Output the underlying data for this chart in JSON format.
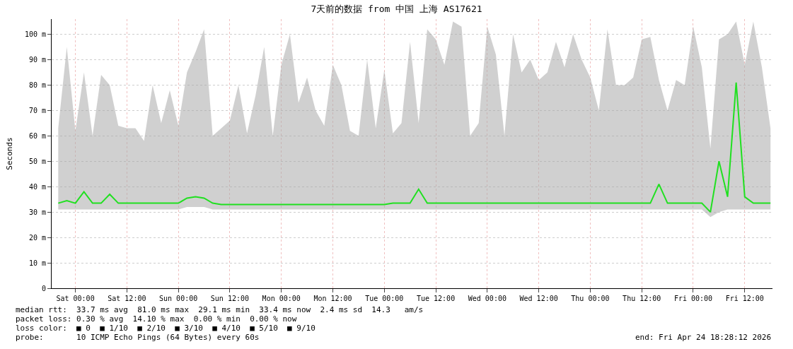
{
  "chart_data": {
    "type": "line",
    "title": "7天前的数据 from 中国 上海 AS17621",
    "ylabel": "Seconds",
    "x": [
      "--04-17T20:00",
      "--04-17T22:00",
      "--04-18T00:00",
      "--04-18T02:00",
      "--04-18T04:00",
      "--04-18T06:00",
      "--04-18T08:00",
      "--04-18T10:00",
      "--04-18T12:00",
      "--04-18T14:00",
      "--04-18T16:00",
      "--04-18T18:00",
      "--04-18T20:00",
      "--04-18T22:00",
      "--04-19T00:00",
      "--04-19T02:00",
      "--04-19T04:00",
      "--04-19T06:00",
      "--04-19T08:00",
      "--04-19T10:00",
      "--04-19T12:00",
      "--04-19T14:00",
      "--04-19T16:00",
      "--04-19T18:00",
      "--04-19T20:00",
      "--04-19T22:00",
      "--04-20T00:00",
      "--04-20T02:00",
      "--04-20T04:00",
      "--04-20T06:00",
      "--04-20T08:00",
      "--04-20T10:00",
      "--04-20T12:00",
      "--04-20T14:00",
      "--04-20T16:00",
      "--04-20T18:00",
      "--04-20T20:00",
      "--04-20T22:00",
      "--04-21T00:00",
      "--04-21T02:00",
      "--04-21T04:00",
      "--04-21T06:00",
      "--04-21T08:00",
      "--04-21T10:00",
      "--04-21T12:00",
      "--04-21T14:00",
      "--04-21T16:00",
      "--04-21T18:00",
      "--04-21T20:00",
      "--04-21T22:00",
      "--04-22T00:00",
      "--04-22T02:00",
      "--04-22T04:00",
      "--04-22T06:00",
      "--04-22T08:00",
      "--04-22T10:00",
      "--04-22T12:00",
      "--04-22T14:00",
      "--04-22T16:00",
      "--04-22T18:00",
      "--04-22T20:00",
      "--04-22T22:00",
      "--04-23T00:00",
      "--04-23T02:00",
      "--04-23T04:00",
      "--04-23T06:00",
      "--04-23T08:00",
      "--04-23T10:00",
      "--04-23T12:00",
      "--04-23T14:00",
      "--04-23T16:00",
      "--04-23T18:00",
      "--04-23T20:00",
      "--04-23T22:00",
      "--04-24T00:00",
      "--04-24T02:00",
      "--04-24T04:00",
      "--04-24T06:00",
      "--04-24T08:00",
      "--04-24T10:00",
      "--04-24T12:00",
      "--04-24T14:00",
      "--04-24T16:00",
      "--04-24T18:00"
    ],
    "series": [
      {
        "color": "#20e020",
        "values": [
          33.5,
          34.5,
          33.5,
          38,
          33.5,
          33.5,
          37,
          33.5,
          33.5,
          33.5,
          33.5,
          33.5,
          33.5,
          33.5,
          33.5,
          35.5,
          36,
          35.5,
          33.5,
          33,
          33,
          33,
          33,
          33,
          33,
          33,
          33,
          33,
          33,
          33,
          33,
          33,
          33,
          33,
          33,
          33,
          33,
          33,
          33,
          33.5,
          33.5,
          33.5,
          39,
          33.5,
          33.5,
          33.5,
          33.5,
          33.5,
          33.5,
          33.5,
          33.5,
          33.5,
          33.5,
          33.5,
          33.5,
          33.5,
          33.5,
          33.5,
          33.5,
          33.5,
          33.5,
          33.5,
          33.5,
          33.5,
          33.5,
          33.5,
          33.5,
          33.5,
          33.5,
          33.5,
          41,
          33.5,
          33.5,
          33.5,
          33.5,
          33.5,
          30,
          50,
          36,
          81,
          36,
          33.5,
          33.5,
          33.5
        ],
        "lower": [
          31,
          31,
          31,
          31,
          31,
          31,
          31,
          31,
          31,
          31,
          31,
          31,
          31,
          31,
          31,
          32,
          32,
          32,
          31,
          31,
          31,
          31,
          31,
          31,
          31,
          31,
          31,
          31,
          31,
          31,
          31,
          31,
          31,
          31,
          31,
          31,
          31,
          31,
          31,
          31,
          31,
          31,
          31,
          31,
          31,
          31,
          31,
          31,
          31,
          31,
          31,
          31,
          31,
          31,
          31,
          31,
          31,
          31,
          31,
          31,
          31,
          31,
          31,
          31,
          31,
          31,
          31,
          31,
          31,
          31,
          31,
          31,
          31,
          31,
          31,
          31,
          28,
          30,
          31,
          31,
          31,
          31,
          31,
          31
        ],
        "upper": [
          63,
          95,
          62,
          85,
          60,
          84,
          80,
          64,
          63,
          63,
          58,
          80,
          65,
          78,
          64,
          85,
          93,
          102,
          60,
          63,
          66,
          80,
          61,
          76,
          95,
          60,
          88,
          100,
          73,
          83,
          70,
          64,
          88,
          80,
          62,
          60,
          90,
          63,
          86,
          61,
          65,
          97,
          65,
          102,
          98,
          88,
          105,
          103,
          60,
          65,
          103,
          92,
          60,
          100,
          85,
          90,
          82,
          85,
          97,
          87,
          100,
          90,
          83,
          70,
          102,
          80,
          80,
          83,
          98,
          99,
          82,
          70,
          82,
          80,
          103,
          87,
          55,
          98,
          100,
          105,
          88,
          105,
          87,
          63
        ]
      }
    ],
    "xlim": [
      "--04-17T18:28",
      "--04-24T18:28"
    ],
    "xticks": [
      {
        "value": "--04-18T00:00",
        "label": "Sat 00:00"
      },
      {
        "value": "--04-18T12:00",
        "label": "Sat 12:00"
      },
      {
        "value": "--04-19T00:00",
        "label": "Sun 00:00"
      },
      {
        "value": "--04-19T12:00",
        "label": "Sun 12:00"
      },
      {
        "value": "--04-20T00:00",
        "label": "Mon 00:00"
      },
      {
        "value": "--04-20T12:00",
        "label": "Mon 12:00"
      },
      {
        "value": "--04-21T00:00",
        "label": "Tue 00:00"
      },
      {
        "value": "--04-21T12:00",
        "label": "Tue 12:00"
      },
      {
        "value": "--04-22T00:00",
        "label": "Wed 00:00"
      },
      {
        "value": "--04-22T12:00",
        "label": "Wed 12:00"
      },
      {
        "value": "--04-23T00:00",
        "label": "Thu 00:00"
      },
      {
        "value": "--04-23T12:00",
        "label": "Thu 12:00"
      },
      {
        "value": "--04-24T00:00",
        "label": "Fri 00:00"
      },
      {
        "value": "--04-24T12:00",
        "label": "Fri 12:00"
      }
    ],
    "ylim": [
      0,
      106
    ],
    "yticks": [
      0,
      {
        "value": 10,
        "label": "10 m"
      },
      {
        "value": 20,
        "label": "20 m"
      },
      {
        "value": 30,
        "label": "30 m"
      },
      {
        "value": 40,
        "label": "40 m"
      },
      {
        "value": 50,
        "label": "50 m"
      },
      {
        "value": 60,
        "label": "60 m"
      },
      {
        "value": 70,
        "label": "70 m"
      },
      {
        "value": 80,
        "label": "80 m"
      },
      {
        "value": 90,
        "label": "90 m"
      },
      {
        "value": 100,
        "label": "100 m"
      }
    ],
    "grid": true,
    "line_style": "solid",
    "marker": "none",
    "annotations": [
      "median rtt:  33.7 ms avg  81.0 ms max  29.1 ms min  33.4 ms now  2.4 ms sd  14.3   am/s",
      "packet loss: 0.30 % avg  14.10 % max  0.00 % min  0.00 % now",
      "loss color:  ■ 0  ■ 1/10  ■ 2/10  ■ 3/10  ■ 4/10  ■ 5/10  ■ 9/10",
      "probe:       10 ICMP Echo Pings (64 Bytes) every 60s",
      "end: Fri Apr 24 18:28:12 2026"
    ]
  }
}
